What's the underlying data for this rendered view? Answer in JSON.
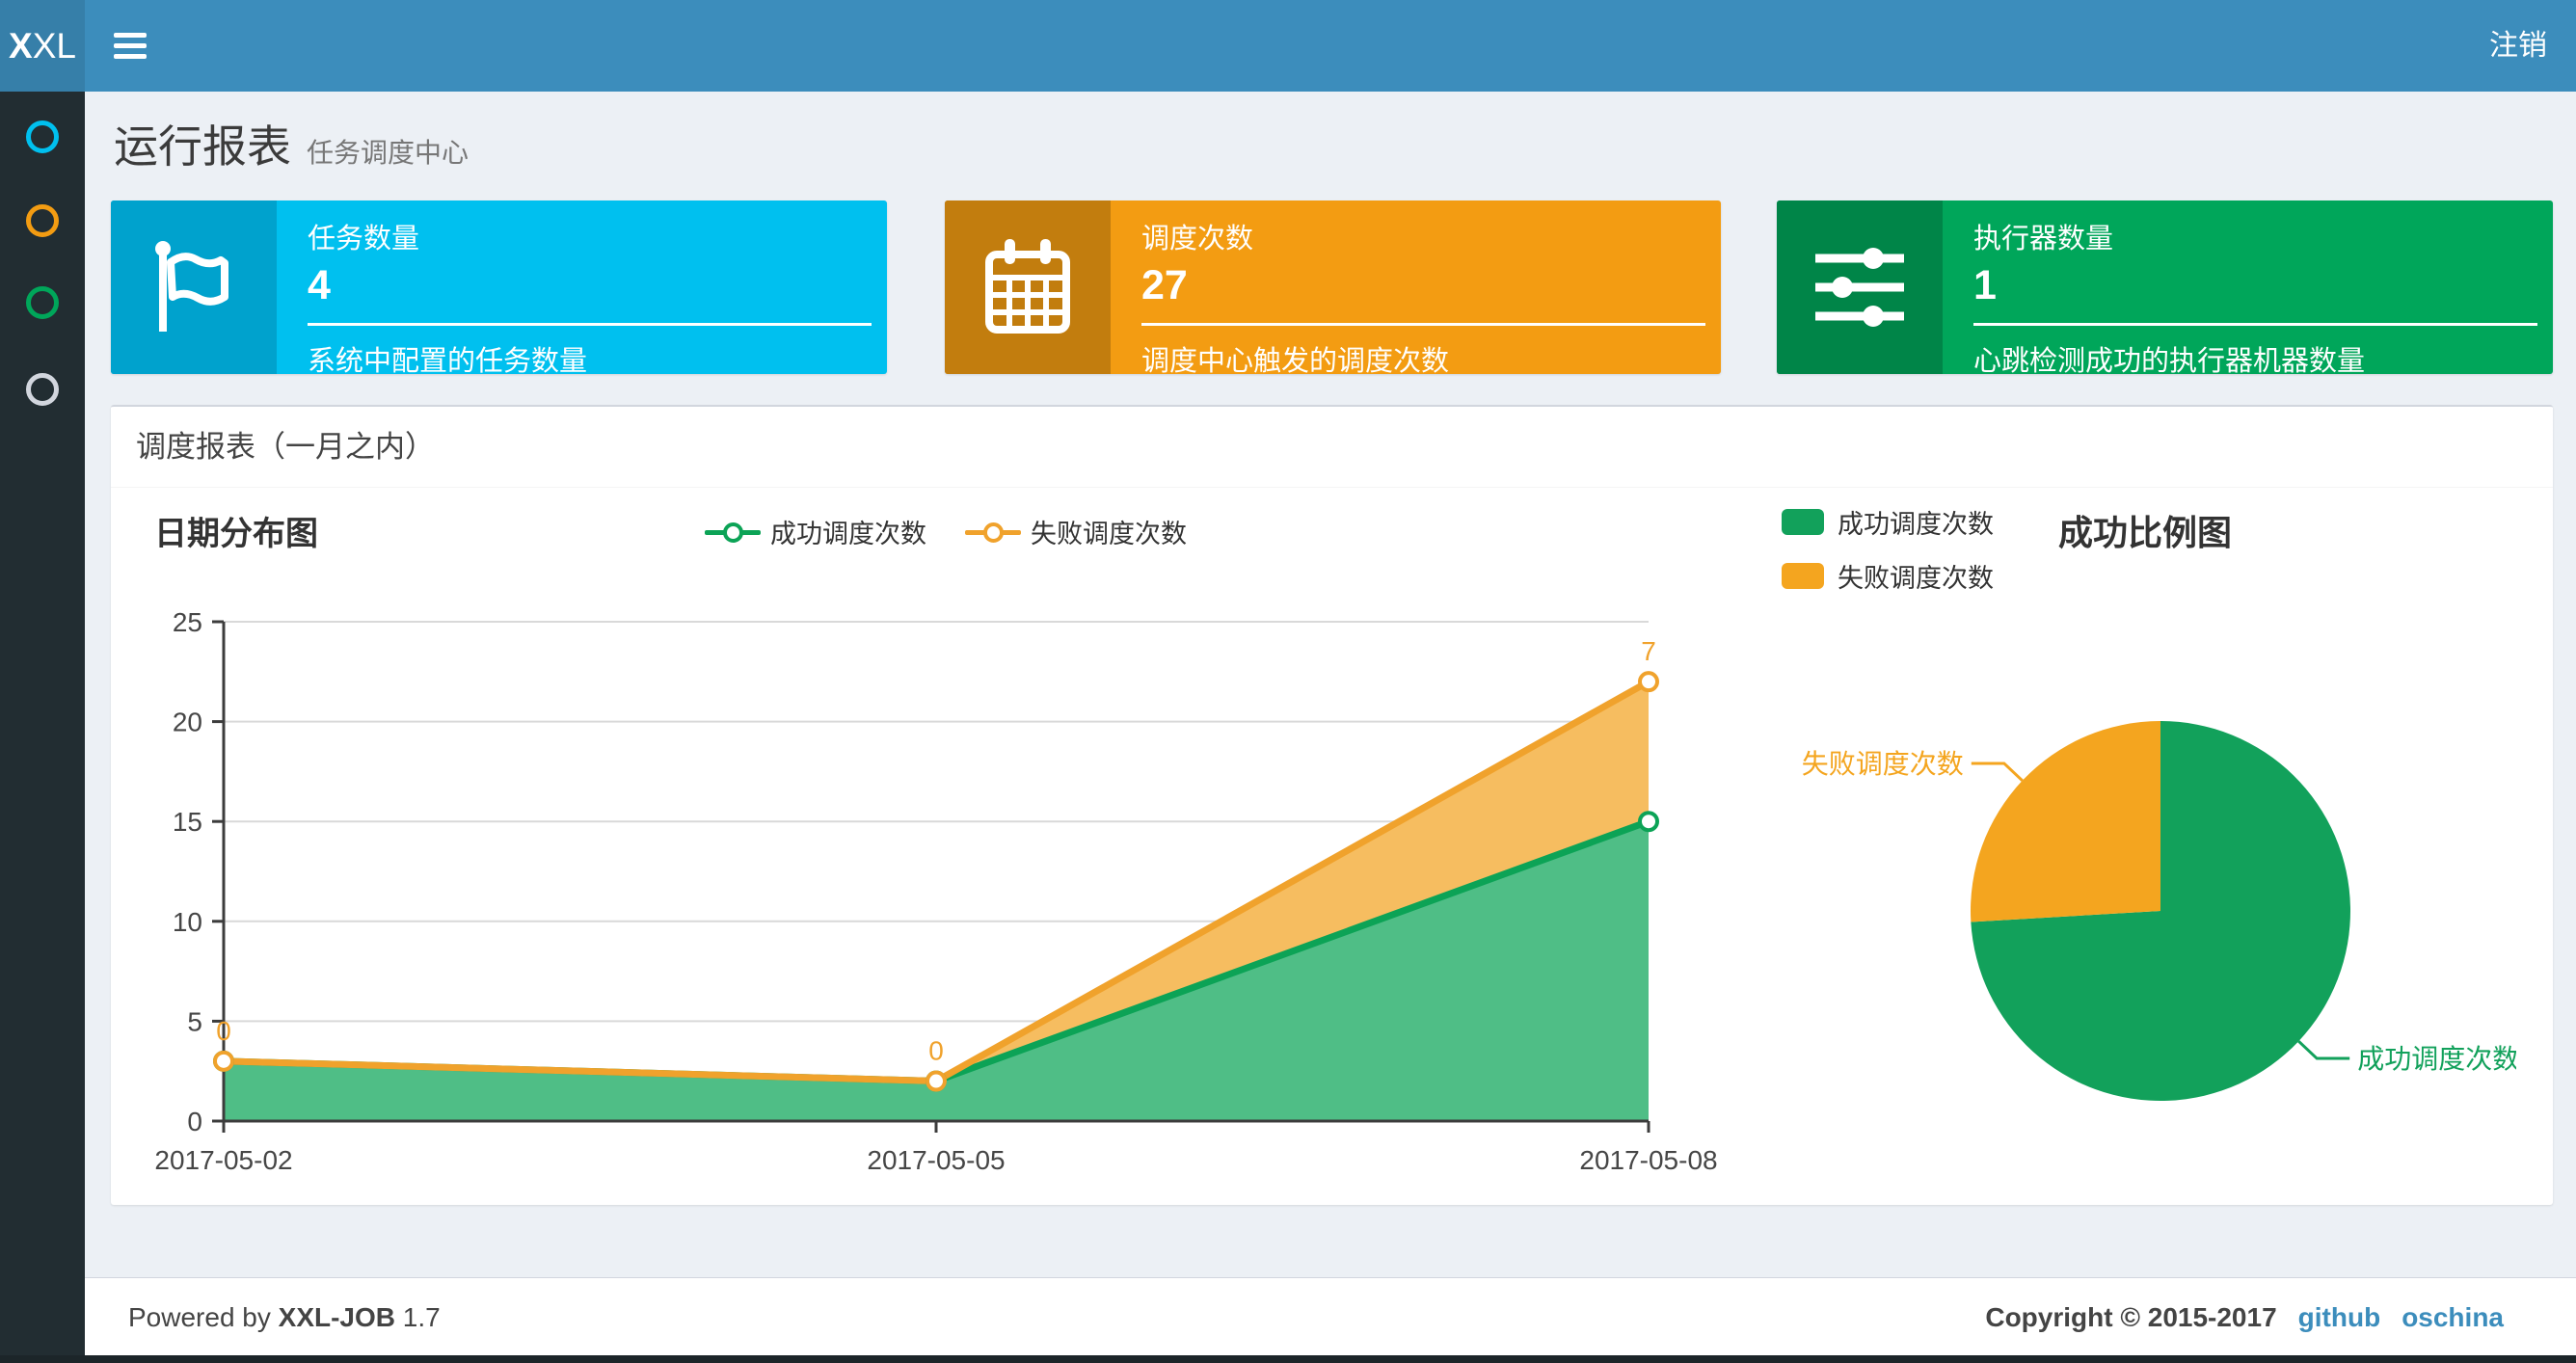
{
  "navbar": {
    "logo_bold": "X",
    "logo_rest": "XL",
    "logout_label": "注销"
  },
  "sidebar": {
    "items": [
      {
        "color": "#00c0ef"
      },
      {
        "color": "#f39c12"
      },
      {
        "color": "#00a65a"
      },
      {
        "color": "#d2d6de"
      }
    ]
  },
  "page_header": {
    "title": "运行报表",
    "subtitle": "任务调度中心"
  },
  "info_boxes": [
    {
      "title": "任务数量",
      "value": "4",
      "description": "系统中配置的任务数量",
      "color": "#00c0ef",
      "icon_bg": "#00a2cd",
      "icon": "flag-icon"
    },
    {
      "title": "调度次数",
      "value": "27",
      "description": "调度中心触发的调度次数",
      "color": "#f39c12",
      "icon_bg": "#c27d0e",
      "icon": "calendar-icon"
    },
    {
      "title": "执行器数量",
      "value": "1",
      "description": "心跳检测成功的执行器机器数量",
      "color": "#00a65a",
      "icon_bg": "#008548",
      "icon": "sliders-icon"
    }
  ],
  "panel": {
    "title": "调度报表（一月之内）"
  },
  "chart_data": [
    {
      "type": "area",
      "title": "日期分布图",
      "stacked": true,
      "categories": [
        "2017-05-02",
        "2017-05-05",
        "2017-05-08"
      ],
      "series": [
        {
          "name": "成功调度次数",
          "values": [
            3,
            2,
            15
          ],
          "line_color": "#0ca356",
          "fill_color": "#4fbe86"
        },
        {
          "name": "失败调度次数",
          "values": [
            0,
            0,
            7
          ],
          "line_color": "#f0a22c",
          "fill_color": "#f6bd60",
          "point_labels": [
            "0",
            "0",
            "7"
          ]
        }
      ],
      "ylim": [
        0,
        25
      ],
      "ytick_step": 5,
      "grid": true,
      "legend_position": "top-center"
    },
    {
      "type": "pie",
      "title": "成功比例图",
      "slices": [
        {
          "name": "成功调度次数",
          "value": 20,
          "color": "#12a15b"
        },
        {
          "name": "失败调度次数",
          "value": 7,
          "color": "#f4a51f"
        }
      ],
      "legend_position": "upper-left"
    }
  ],
  "footer": {
    "powered_prefix": "Powered by ",
    "brand": "XXL-JOB",
    "version": " 1.7",
    "copyright": "Copyright © 2015-2017",
    "links": [
      "github",
      "oschina"
    ],
    "link_color": "#3c8dbc"
  }
}
